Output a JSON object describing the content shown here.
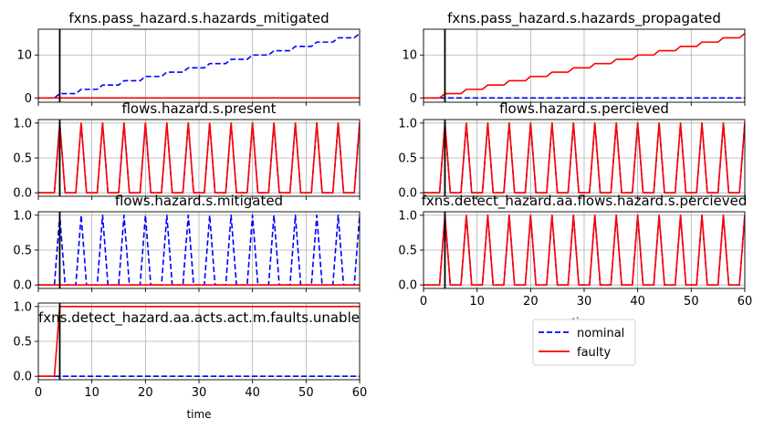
{
  "figure": {
    "legend": {
      "position": "lower-right-center",
      "entries": [
        "nominal",
        "faulty"
      ]
    },
    "colors": {
      "nominal": "#0000ff",
      "faulty": "#ff0000",
      "marker": "#000000",
      "grid": "#b0b0b0"
    }
  },
  "chart_data": [
    {
      "type": "line",
      "title": "fxns.pass_hazard.s.hazards_mitigated",
      "xlabel": "",
      "ylabel": "",
      "xlim": [
        0,
        60
      ],
      "ylim": [
        -1,
        16
      ],
      "xticks": [
        0,
        10,
        20,
        30,
        40,
        50,
        60
      ],
      "xtick_labels_visible": false,
      "yticks": [
        0,
        10
      ],
      "ytick_labels": [
        "0",
        "10"
      ],
      "fault_time": 4,
      "series": [
        {
          "name": "nominal",
          "style": "dashed",
          "kind": "steps",
          "step_every": 4,
          "start": 4,
          "y0": 0
        },
        {
          "name": "faulty",
          "style": "solid",
          "kind": "constant",
          "value": 0
        }
      ]
    },
    {
      "type": "line",
      "title": "fxns.pass_hazard.s.hazards_propagated",
      "xlabel": "",
      "ylabel": "",
      "xlim": [
        0,
        60
      ],
      "ylim": [
        -1,
        16
      ],
      "xticks": [
        0,
        10,
        20,
        30,
        40,
        50,
        60
      ],
      "xtick_labels_visible": false,
      "yticks": [
        0,
        10
      ],
      "ytick_labels": [
        "0",
        "10"
      ],
      "fault_time": 4,
      "series": [
        {
          "name": "nominal",
          "style": "dashed",
          "kind": "constant",
          "value": 0
        },
        {
          "name": "faulty",
          "style": "solid",
          "kind": "steps",
          "step_every": 4,
          "start": 4,
          "y0": 0
        }
      ]
    },
    {
      "type": "line",
      "title": "flows.hazard.s.present",
      "xlabel": "",
      "ylabel": "",
      "xlim": [
        0,
        60
      ],
      "ylim": [
        -0.05,
        1.05
      ],
      "xticks": [
        0,
        10,
        20,
        30,
        40,
        50,
        60
      ],
      "xtick_labels_visible": false,
      "yticks": [
        0,
        0.5,
        1
      ],
      "ytick_labels": [
        "0.0",
        "0.5",
        "1.0"
      ],
      "fault_time": 4,
      "series": [
        {
          "name": "nominal",
          "style": "dashed",
          "kind": "spikes",
          "period": 4,
          "start": 4
        },
        {
          "name": "faulty",
          "style": "solid",
          "kind": "spikes",
          "period": 4,
          "start": 4
        }
      ]
    },
    {
      "type": "line",
      "title": "flows.hazard.s.percieved",
      "xlabel": "",
      "ylabel": "",
      "xlim": [
        0,
        60
      ],
      "ylim": [
        -0.05,
        1.05
      ],
      "xticks": [
        0,
        10,
        20,
        30,
        40,
        50,
        60
      ],
      "xtick_labels_visible": false,
      "yticks": [
        0,
        0.5,
        1
      ],
      "ytick_labels": [
        "0.0",
        "0.5",
        "1.0"
      ],
      "fault_time": 4,
      "series": [
        {
          "name": "nominal",
          "style": "dashed",
          "kind": "spikes",
          "period": 4,
          "start": 4
        },
        {
          "name": "faulty",
          "style": "solid",
          "kind": "spikes",
          "period": 4,
          "start": 4
        }
      ]
    },
    {
      "type": "line",
      "title": "flows.hazard.s.mitigated",
      "xlabel": "",
      "ylabel": "",
      "xlim": [
        0,
        60
      ],
      "ylim": [
        -0.05,
        1.05
      ],
      "xticks": [
        0,
        10,
        20,
        30,
        40,
        50,
        60
      ],
      "xtick_labels_visible": false,
      "yticks": [
        0,
        0.5,
        1
      ],
      "ytick_labels": [
        "0.0",
        "0.5",
        "1.0"
      ],
      "fault_time": 4,
      "series": [
        {
          "name": "nominal",
          "style": "dashed",
          "kind": "spikes",
          "period": 4,
          "start": 4
        },
        {
          "name": "faulty",
          "style": "solid",
          "kind": "constant",
          "value": 0
        }
      ]
    },
    {
      "type": "line",
      "title": "fxns.detect_hazard.aa.flows.hazard.s.percieved",
      "xlabel": "time",
      "ylabel": "",
      "xlim": [
        0,
        60
      ],
      "ylim": [
        -0.05,
        1.05
      ],
      "xticks": [
        0,
        10,
        20,
        30,
        40,
        50,
        60
      ],
      "xtick_labels_visible": true,
      "xtick_labels": [
        "0",
        "10",
        "20",
        "30",
        "40",
        "50",
        "60"
      ],
      "yticks": [
        0,
        0.5,
        1
      ],
      "ytick_labels": [
        "0.0",
        "0.5",
        "1.0"
      ],
      "fault_time": 4,
      "series": [
        {
          "name": "nominal",
          "style": "dashed",
          "kind": "spikes",
          "period": 4,
          "start": 4
        },
        {
          "name": "faulty",
          "style": "solid",
          "kind": "spikes",
          "period": 4,
          "start": 4
        }
      ]
    },
    {
      "type": "line",
      "title": "fxns.detect_hazard.aa.acts.act.m.faults.unable",
      "xlabel": "time",
      "ylabel": "",
      "xlim": [
        0,
        60
      ],
      "ylim": [
        -0.05,
        1.05
      ],
      "xticks": [
        0,
        10,
        20,
        30,
        40,
        50,
        60
      ],
      "xtick_labels_visible": true,
      "xtick_labels": [
        "0",
        "10",
        "20",
        "30",
        "40",
        "50",
        "60"
      ],
      "yticks": [
        0,
        0.5,
        1
      ],
      "ytick_labels": [
        "0.0",
        "0.5",
        "1.0"
      ],
      "fault_time": 4,
      "series": [
        {
          "name": "nominal",
          "style": "dashed",
          "kind": "constant",
          "value": 0
        },
        {
          "name": "faulty",
          "style": "solid",
          "kind": "jump",
          "at": 4,
          "before": 0,
          "after": 1
        }
      ]
    }
  ]
}
